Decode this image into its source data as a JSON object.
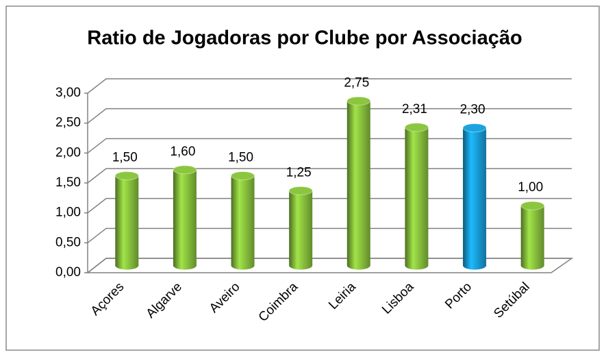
{
  "chart_data": {
    "type": "bar3d",
    "title": "Ratio de Jogadoras por Clube por Associação",
    "categories": [
      "Açores",
      "Algarve",
      "Aveiro",
      "Coimbra",
      "Leiria",
      "Lisboa",
      "Porto",
      "Setúbal"
    ],
    "values": [
      1.5,
      1.6,
      1.5,
      1.25,
      2.75,
      2.31,
      2.3,
      1.0
    ],
    "value_labels": [
      "1,50",
      "1,60",
      "1,50",
      "1,25",
      "2,75",
      "2,31",
      "2,30",
      "1,00"
    ],
    "colors": [
      "#8cc63f",
      "#8cc63f",
      "#8cc63f",
      "#8cc63f",
      "#8cc63f",
      "#8cc63f",
      "#1aa3e0",
      "#8cc63f"
    ],
    "ylim": [
      0,
      3
    ],
    "yticks": [
      {
        "value": 0,
        "label": "0,00"
      },
      {
        "value": 0.5,
        "label": "0,50"
      },
      {
        "value": 1,
        "label": "1,00"
      },
      {
        "value": 1.5,
        "label": "1,50"
      },
      {
        "value": 2,
        "label": "2,00"
      },
      {
        "value": 2.5,
        "label": "2,50"
      },
      {
        "value": 3,
        "label": "3,00"
      }
    ],
    "grid": true
  }
}
